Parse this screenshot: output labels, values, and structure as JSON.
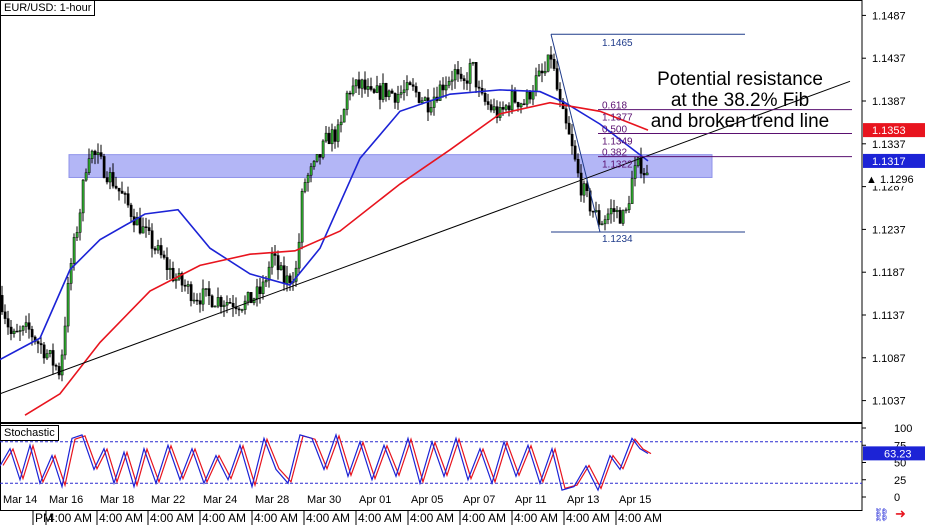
{
  "title": "EUR/USD: 1-hour",
  "indicator_title": "Stochastic",
  "annotation": [
    "Potential resistance",
    "at the 38.2% Fib",
    "and broken trend line"
  ],
  "chart_data": {
    "type": "candlestick",
    "symbol": "EUR/USD",
    "timeframe": "1-hour",
    "price_axis": {
      "ticks": [
        1.1487,
        1.1437,
        1.1387,
        1.1337,
        1.1287,
        1.1237,
        1.1187,
        1.1137,
        1.1087,
        1.1037
      ],
      "range": [
        1.1012,
        1.1505
      ],
      "current_price": 1.1296,
      "price_tags": [
        {
          "label": "1.1353",
          "value": 1.1353,
          "color": "#e8141e"
        },
        {
          "label": "1.1317",
          "value": 1.1317,
          "color": "#1c23d6"
        }
      ]
    },
    "x_axis": {
      "date_labels": [
        "Mar 14",
        "Mar 16",
        "Mar 18",
        "Mar 22",
        "Mar 24",
        "Mar 28",
        "Mar 30",
        "Apr 01",
        "Apr 05",
        "Apr 07",
        "Apr 11",
        "Apr 13",
        "Apr 15"
      ],
      "time_labels": [
        "PM",
        "4:00 AM",
        "4:00 AM",
        "4:00 AM",
        "4:00 AM",
        "4:00 AM",
        "4:00 AM",
        "4:00 AM",
        "4:00 AM",
        "4:00 AM",
        "4:00 AM",
        "4:00 AM",
        "4:00 AM"
      ]
    },
    "price_path": [
      {
        "i": 0,
        "p": 1.116
      },
      {
        "i": 12,
        "p": 1.111
      },
      {
        "i": 28,
        "p": 1.112
      },
      {
        "i": 45,
        "p": 1.1095
      },
      {
        "i": 60,
        "p": 1.107
      },
      {
        "i": 70,
        "p": 1.119
      },
      {
        "i": 80,
        "p": 1.126
      },
      {
        "i": 88,
        "p": 1.133
      },
      {
        "i": 97,
        "p": 1.132
      },
      {
        "i": 115,
        "p": 1.129
      },
      {
        "i": 135,
        "p": 1.125
      },
      {
        "i": 155,
        "p": 1.1215
      },
      {
        "i": 175,
        "p": 1.118
      },
      {
        "i": 195,
        "p": 1.116
      },
      {
        "i": 220,
        "p": 1.1155
      },
      {
        "i": 245,
        "p": 1.115
      },
      {
        "i": 262,
        "p": 1.1165
      },
      {
        "i": 272,
        "p": 1.1205
      },
      {
        "i": 285,
        "p": 1.1175
      },
      {
        "i": 297,
        "p": 1.119
      },
      {
        "i": 303,
        "p": 1.129
      },
      {
        "i": 315,
        "p": 1.131
      },
      {
        "i": 328,
        "p": 1.1345
      },
      {
        "i": 340,
        "p": 1.135
      },
      {
        "i": 348,
        "p": 1.14
      },
      {
        "i": 362,
        "p": 1.1405
      },
      {
        "i": 372,
        "p": 1.139
      },
      {
        "i": 382,
        "p": 1.14
      },
      {
        "i": 396,
        "p": 1.1395
      },
      {
        "i": 412,
        "p": 1.14
      },
      {
        "i": 428,
        "p": 1.1385
      },
      {
        "i": 445,
        "p": 1.141
      },
      {
        "i": 455,
        "p": 1.142
      },
      {
        "i": 462,
        "p": 1.14
      },
      {
        "i": 472,
        "p": 1.143
      },
      {
        "i": 480,
        "p": 1.139
      },
      {
        "i": 490,
        "p": 1.138
      },
      {
        "i": 500,
        "p": 1.137
      },
      {
        "i": 512,
        "p": 1.139
      },
      {
        "i": 525,
        "p": 1.1385
      },
      {
        "i": 535,
        "p": 1.141
      },
      {
        "i": 545,
        "p": 1.142
      },
      {
        "i": 551,
        "p": 1.144
      },
      {
        "i": 560,
        "p": 1.138
      },
      {
        "i": 570,
        "p": 1.134
      },
      {
        "i": 580,
        "p": 1.129
      },
      {
        "i": 590,
        "p": 1.1265
      },
      {
        "i": 600,
        "p": 1.1245
      },
      {
        "i": 612,
        "p": 1.126
      },
      {
        "i": 625,
        "p": 1.125
      },
      {
        "i": 633,
        "p": 1.13
      },
      {
        "i": 640,
        "p": 1.1315
      },
      {
        "i": 648,
        "p": 1.1296
      }
    ],
    "support_zone": {
      "from": 1.13,
      "to": 1.1322
    },
    "trend_line": {
      "start": {
        "i": 0,
        "p": 1.1045
      },
      "end": {
        "i": 850,
        "p": 1.141
      }
    },
    "fibonacci": {
      "top": 1.1465,
      "bottom": 1.1234,
      "levels": [
        {
          "label": "1.1465",
          "ratio_label": "",
          "value": 1.1465
        },
        {
          "label": "1.1377",
          "ratio_label": "0.618",
          "value": 1.1377
        },
        {
          "label": "1.1349",
          "ratio_label": "0.500",
          "value": 1.1349
        },
        {
          "label": "1.1322",
          "ratio_label": "0.382",
          "value": 1.1322
        },
        {
          "label": "1.1234",
          "ratio_label": "",
          "value": 1.1234
        }
      ]
    },
    "moving_averages": [
      {
        "color": "#1c23d6",
        "path": [
          {
            "i": 0,
            "p": 1.1085
          },
          {
            "i": 40,
            "p": 1.111
          },
          {
            "i": 70,
            "p": 1.119
          },
          {
            "i": 100,
            "p": 1.1225
          },
          {
            "i": 145,
            "p": 1.1255
          },
          {
            "i": 178,
            "p": 1.126
          },
          {
            "i": 210,
            "p": 1.1215
          },
          {
            "i": 250,
            "p": 1.1185
          },
          {
            "i": 290,
            "p": 1.1172
          },
          {
            "i": 320,
            "p": 1.1215
          },
          {
            "i": 360,
            "p": 1.132
          },
          {
            "i": 400,
            "p": 1.1375
          },
          {
            "i": 450,
            "p": 1.1395
          },
          {
            "i": 500,
            "p": 1.14
          },
          {
            "i": 540,
            "p": 1.1398
          },
          {
            "i": 565,
            "p": 1.1385
          },
          {
            "i": 600,
            "p": 1.136
          },
          {
            "i": 648,
            "p": 1.1317
          }
        ]
      },
      {
        "color": "#e8141e",
        "path": [
          {
            "i": 25,
            "p": 1.102
          },
          {
            "i": 60,
            "p": 1.1045
          },
          {
            "i": 100,
            "p": 1.1105
          },
          {
            "i": 150,
            "p": 1.1165
          },
          {
            "i": 200,
            "p": 1.1195
          },
          {
            "i": 250,
            "p": 1.1208
          },
          {
            "i": 295,
            "p": 1.1212
          },
          {
            "i": 340,
            "p": 1.1235
          },
          {
            "i": 400,
            "p": 1.129
          },
          {
            "i": 450,
            "p": 1.133
          },
          {
            "i": 500,
            "p": 1.1372
          },
          {
            "i": 550,
            "p": 1.1385
          },
          {
            "i": 600,
            "p": 1.1375
          },
          {
            "i": 648,
            "p": 1.1353
          }
        ]
      }
    ],
    "stochastic": {
      "axis_ticks": [
        100,
        75,
        50,
        25,
        0
      ],
      "levels": [
        80,
        20
      ],
      "last_value": 63.23,
      "k_path": [
        {
          "i": 0,
          "v": 45
        },
        {
          "i": 10,
          "v": 70
        },
        {
          "i": 20,
          "v": 25
        },
        {
          "i": 30,
          "v": 75
        },
        {
          "i": 40,
          "v": 20
        },
        {
          "i": 52,
          "v": 60
        },
        {
          "i": 62,
          "v": 15
        },
        {
          "i": 72,
          "v": 85
        },
        {
          "i": 82,
          "v": 90
        },
        {
          "i": 94,
          "v": 40
        },
        {
          "i": 104,
          "v": 70
        },
        {
          "i": 114,
          "v": 20
        },
        {
          "i": 124,
          "v": 65
        },
        {
          "i": 134,
          "v": 15
        },
        {
          "i": 144,
          "v": 70
        },
        {
          "i": 156,
          "v": 20
        },
        {
          "i": 168,
          "v": 75
        },
        {
          "i": 180,
          "v": 25
        },
        {
          "i": 192,
          "v": 70
        },
        {
          "i": 204,
          "v": 20
        },
        {
          "i": 216,
          "v": 60
        },
        {
          "i": 228,
          "v": 25
        },
        {
          "i": 240,
          "v": 75
        },
        {
          "i": 252,
          "v": 15
        },
        {
          "i": 264,
          "v": 85
        },
        {
          "i": 276,
          "v": 40
        },
        {
          "i": 288,
          "v": 20
        },
        {
          "i": 300,
          "v": 90
        },
        {
          "i": 312,
          "v": 85
        },
        {
          "i": 324,
          "v": 40
        },
        {
          "i": 336,
          "v": 90
        },
        {
          "i": 348,
          "v": 30
        },
        {
          "i": 360,
          "v": 80
        },
        {
          "i": 372,
          "v": 25
        },
        {
          "i": 384,
          "v": 75
        },
        {
          "i": 396,
          "v": 30
        },
        {
          "i": 408,
          "v": 85
        },
        {
          "i": 420,
          "v": 20
        },
        {
          "i": 432,
          "v": 80
        },
        {
          "i": 444,
          "v": 30
        },
        {
          "i": 456,
          "v": 85
        },
        {
          "i": 468,
          "v": 25
        },
        {
          "i": 480,
          "v": 70
        },
        {
          "i": 492,
          "v": 20
        },
        {
          "i": 504,
          "v": 80
        },
        {
          "i": 516,
          "v": 30
        },
        {
          "i": 528,
          "v": 75
        },
        {
          "i": 540,
          "v": 20
        },
        {
          "i": 552,
          "v": 70
        },
        {
          "i": 562,
          "v": 10
        },
        {
          "i": 574,
          "v": 15
        },
        {
          "i": 586,
          "v": 45
        },
        {
          "i": 598,
          "v": 10
        },
        {
          "i": 610,
          "v": 60
        },
        {
          "i": 620,
          "v": 40
        },
        {
          "i": 632,
          "v": 85
        },
        {
          "i": 640,
          "v": 70
        },
        {
          "i": 648,
          "v": 63
        }
      ]
    }
  }
}
